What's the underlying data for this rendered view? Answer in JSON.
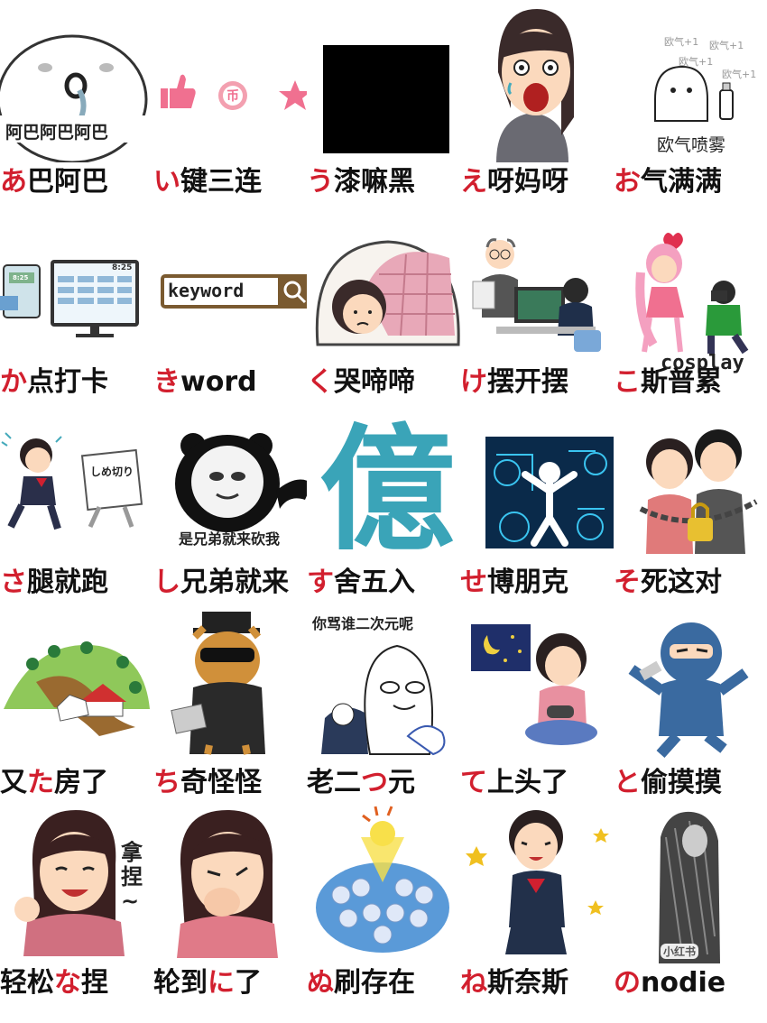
{
  "rows": [
    [
      {
        "pre": "",
        "kana": "あ",
        "post": "巴阿巴",
        "pic_text": "阿巴阿巴阿巴",
        "icon": "crying-blob-icon"
      },
      {
        "pre": "",
        "kana": "い",
        "post": "键三连",
        "pic_text": "币",
        "icon": "like-coin-favorite-icons"
      },
      {
        "pre": "",
        "kana": "う",
        "post": "漆嘛黑",
        "pic_text": "",
        "icon": "black-square-icon"
      },
      {
        "pre": "",
        "kana": "え",
        "post": "呀妈呀",
        "pic_text": "",
        "icon": "shocked-woman-icon"
      },
      {
        "pre": "",
        "kana": "お",
        "post": "气满满",
        "pic_text": "欧气喷雾",
        "pic_text2": "欧气+1",
        "icon": "spray-blob-icon"
      }
    ],
    [
      {
        "pre": "",
        "kana": "か",
        "post": "点打卡",
        "pic_text": "8:25",
        "icon": "timecard-clock-icon"
      },
      {
        "pre": "",
        "kana": "き",
        "post": "word",
        "pic_text": "keyword",
        "icon": "search-bar-icon"
      },
      {
        "pre": "",
        "kana": "く",
        "post": "哭啼啼",
        "pic_text": "",
        "icon": "girl-under-blanket-icon"
      },
      {
        "pre": "",
        "kana": "け",
        "post": "摆开摆",
        "pic_text": "",
        "icon": "office-workers-icon"
      },
      {
        "pre": "",
        "kana": "こ",
        "post": "斯普累",
        "pic_text": "cosplay",
        "icon": "cosplay-photographer-icon"
      }
    ],
    [
      {
        "pre": "",
        "kana": "さ",
        "post": "腿就跑",
        "pic_text": "しめ切り",
        "icon": "running-from-deadline-icon"
      },
      {
        "pre": "",
        "kana": "し",
        "post": "兄弟就来",
        "pic_text": "是兄弟就来砍我",
        "icon": "panda-meme-icon"
      },
      {
        "pre": "",
        "kana": "す",
        "post": "舍五入",
        "pic_text": "億",
        "icon": "oku-character-icon"
      },
      {
        "pre": "",
        "kana": "せ",
        "post": "博朋克",
        "pic_text": "",
        "icon": "cyber-figure-icon"
      },
      {
        "pre": "",
        "kana": "そ",
        "post": "死这对",
        "pic_text": "",
        "icon": "chained-couple-icon"
      }
    ],
    [
      {
        "pre": "又",
        "kana": "た",
        "post": "房了",
        "pic_text": "",
        "icon": "landslide-house-icon"
      },
      {
        "pre": "",
        "kana": "ち",
        "post": "奇怪怪",
        "pic_text": "",
        "icon": "detective-cat-icon"
      },
      {
        "pre": "老二",
        "kana": "つ",
        "post": "元",
        "pic_text": "你骂谁二次元呢",
        "icon": "anime-meme-icon"
      },
      {
        "pre": "",
        "kana": "て",
        "post": "上头了",
        "pic_text": "",
        "icon": "gamer-girl-icon"
      },
      {
        "pre": "",
        "kana": "と",
        "post": "偷摸摸",
        "pic_text": "",
        "icon": "ninja-icon"
      }
    ],
    [
      {
        "pre": "轻松",
        "kana": "な",
        "post": "捏",
        "pic_text": "拿\n捏\n~",
        "icon": "okay-woman-icon"
      },
      {
        "pre": "轮到",
        "kana": "に",
        "post": "了",
        "pic_text": "",
        "icon": "pointing-woman-icon"
      },
      {
        "pre": "",
        "kana": "ぬ",
        "post": "刷存在",
        "pic_text": "",
        "icon": "standout-crowd-icon"
      },
      {
        "pre": "",
        "kana": "ね",
        "post": "斯奈斯",
        "pic_text": "",
        "icon": "happy-schoolgirl-icon"
      },
      {
        "pre": "",
        "kana": "の",
        "post": "nodie",
        "pic_text": "小红书",
        "icon": "shadow-figure-icon"
      }
    ]
  ]
}
